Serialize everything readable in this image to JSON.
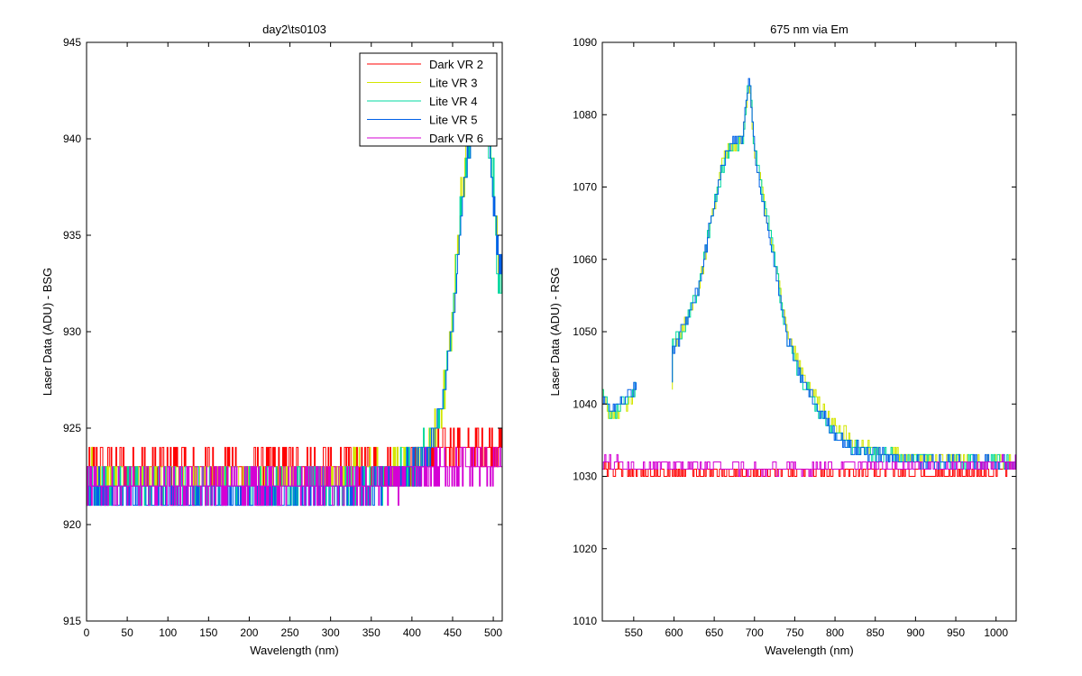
{
  "chart_data": [
    {
      "type": "line",
      "title": "day2\\ts0103",
      "xlabel": "Wavelength (nm)",
      "ylabel": "Laser Data (ADU) - BSG",
      "xlim": [
        0,
        511
      ],
      "ylim": [
        915,
        945
      ],
      "xticks": [
        0,
        50,
        100,
        150,
        200,
        250,
        300,
        350,
        400,
        450,
        500
      ],
      "yticks": [
        915,
        920,
        925,
        930,
        935,
        940,
        945
      ],
      "legend": "top-right",
      "series": [
        {
          "name": "Dark VR 2",
          "color": "#ff0000",
          "x": [
            0,
            50,
            100,
            150,
            200,
            250,
            300,
            350,
            400,
            420,
            440,
            460,
            480,
            500,
            511
          ],
          "y": [
            923,
            923,
            923,
            923,
            923,
            923,
            923,
            923,
            923,
            923.5,
            924,
            924,
            924,
            924,
            924
          ]
        },
        {
          "name": "Lite VR 3",
          "color": "#d4e600",
          "x": [
            0,
            50,
            100,
            150,
            200,
            250,
            300,
            350,
            400,
            420,
            430,
            440,
            450,
            460,
            470,
            480,
            490,
            500,
            505,
            511
          ],
          "y": [
            923,
            922.5,
            922.5,
            922.5,
            922.5,
            922.5,
            922.5,
            923,
            923,
            924,
            925,
            927,
            931,
            937,
            940,
            941,
            942,
            938,
            934,
            933
          ]
        },
        {
          "name": "Lite VR 4",
          "color": "#00d9a0",
          "x": [
            0,
            50,
            100,
            150,
            200,
            250,
            300,
            350,
            400,
            420,
            430,
            440,
            450,
            460,
            470,
            480,
            490,
            500,
            505,
            511
          ],
          "y": [
            922,
            922,
            922,
            922,
            922,
            922,
            922,
            922,
            923,
            924,
            925,
            927,
            931,
            936.5,
            940,
            941.5,
            941,
            938,
            932,
            933
          ]
        },
        {
          "name": "Lite VR 5",
          "color": "#0060e8",
          "x": [
            0,
            50,
            100,
            150,
            200,
            250,
            300,
            350,
            400,
            420,
            430,
            440,
            450,
            460,
            470,
            480,
            490,
            500,
            505,
            511
          ],
          "y": [
            922,
            921.5,
            921.5,
            921.5,
            921.5,
            921.5,
            921.5,
            922,
            923,
            923.5,
            925,
            927,
            930.5,
            936,
            940,
            941.5,
            941,
            937,
            934,
            933
          ]
        },
        {
          "name": "Dark VR 6",
          "color": "#d400d4",
          "x": [
            0,
            50,
            100,
            150,
            200,
            250,
            300,
            350,
            400,
            450,
            500,
            511
          ],
          "y": [
            922,
            922,
            922,
            922,
            922,
            922,
            922,
            922,
            922.5,
            923,
            923,
            923
          ]
        }
      ]
    },
    {
      "type": "line",
      "title": "675 nm via Em",
      "xlabel": "Wavelength (nm)",
      "ylabel": "Laser Data (ADU) - RSG",
      "xlim": [
        511,
        1025
      ],
      "ylim": [
        1010,
        1090
      ],
      "xticks": [
        550,
        600,
        650,
        700,
        750,
        800,
        850,
        900,
        950,
        1000
      ],
      "yticks": [
        1010,
        1020,
        1030,
        1040,
        1050,
        1060,
        1070,
        1080,
        1090
      ],
      "series": [
        {
          "name": "Dark VR 2",
          "color": "#ff0000",
          "x": [
            511,
            550,
            600,
            650,
            700,
            750,
            800,
            850,
            900,
            950,
            1000,
            1025
          ],
          "y": [
            1031,
            1030.5,
            1030.5,
            1030.5,
            1030.5,
            1030.5,
            1030.5,
            1030.5,
            1030.5,
            1030.5,
            1030.5,
            1031
          ]
        },
        {
          "name": "Lite VR 3",
          "color": "#d4e600",
          "x": [
            511,
            520,
            540,
            553,
            600,
            610,
            630,
            650,
            660,
            670,
            685,
            693,
            700,
            710,
            720,
            740,
            760,
            780,
            800,
            820,
            850,
            900,
            950,
            1000,
            1025
          ],
          "y": [
            1042,
            1038,
            1040,
            1042,
            1049,
            1050,
            1056,
            1068,
            1074,
            1075,
            1077,
            1085,
            1074,
            1069,
            1063,
            1050,
            1044,
            1040,
            1037,
            1035,
            1033.5,
            1032.5,
            1032.5,
            1032,
            1032
          ]
        },
        {
          "name": "Lite VR 4",
          "color": "#00d9a0",
          "x": [
            511,
            520,
            540,
            553,
            600,
            610,
            630,
            650,
            660,
            670,
            685,
            693,
            700,
            710,
            720,
            740,
            760,
            780,
            800,
            820,
            850,
            900,
            950,
            1000,
            1025
          ],
          "y": [
            1041.5,
            1038.5,
            1040.5,
            1042,
            1048.5,
            1050,
            1056,
            1068,
            1073,
            1075,
            1077,
            1085,
            1075,
            1069,
            1063,
            1049,
            1043,
            1039,
            1036,
            1034,
            1033,
            1032.5,
            1032,
            1032,
            1032
          ]
        },
        {
          "name": "Lite VR 5",
          "color": "#0060e8",
          "x": [
            511,
            520,
            540,
            553,
            600,
            610,
            630,
            650,
            660,
            670,
            685,
            693,
            700,
            710,
            720,
            740,
            760,
            780,
            800,
            820,
            850,
            900,
            950,
            1000,
            1025
          ],
          "y": [
            1041,
            1039,
            1041,
            1042.5,
            1048,
            1050,
            1056,
            1068,
            1073,
            1076,
            1077,
            1085,
            1074,
            1068,
            1062,
            1049,
            1043,
            1039,
            1036,
            1034,
            1033,
            1032,
            1032,
            1032,
            1032
          ]
        },
        {
          "name": "Dark VR 6",
          "color": "#d400d4",
          "x": [
            511,
            550,
            600,
            650,
            700,
            750,
            800,
            850,
            900,
            950,
            1000,
            1025
          ],
          "y": [
            1032,
            1031.5,
            1031.5,
            1031.5,
            1031,
            1031,
            1031.5,
            1031.5,
            1031.5,
            1031.5,
            1031.5,
            1032
          ]
        }
      ]
    }
  ]
}
